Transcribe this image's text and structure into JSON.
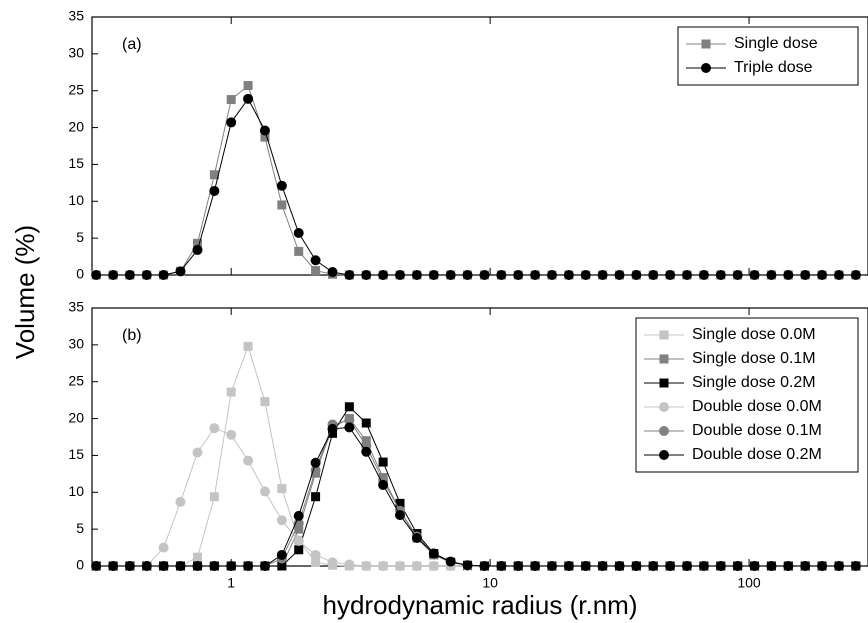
{
  "ylabel": "Volume (%)",
  "xlabel": "hydrodynamic radius (r.nm)",
  "chart_data": [
    {
      "type": "line",
      "label": "(a)",
      "log_x": true,
      "xlim": [
        0.29,
        288
      ],
      "ylim": [
        0,
        35
      ],
      "xticks": [
        1,
        10,
        100
      ],
      "yticks": [
        0,
        5,
        10,
        15,
        20,
        25,
        30,
        35
      ],
      "legend": "top-right",
      "x": [
        0.301,
        0.35,
        0.406,
        0.472,
        0.548,
        0.637,
        0.741,
        0.861,
        1.0,
        1.162,
        1.35,
        1.569,
        1.823,
        2.118,
        2.462,
        2.86,
        3.323,
        3.862,
        4.487,
        5.214,
        6.059,
        7.04,
        8.18,
        9.51,
        11.05,
        12.84,
        14.92,
        17.33,
        20.14,
        23.4,
        27.19,
        31.6,
        36.72,
        42.66,
        49.57,
        57.6,
        66.93,
        77.77,
        90.36,
        105.0,
        122.0,
        141.8,
        164.8,
        191.4,
        222.5,
        258.5
      ],
      "series": [
        {
          "name": "Single dose",
          "color": "#808080",
          "marker": "square",
          "values": [
            0,
            0,
            0,
            0,
            0,
            0.5,
            4.3,
            13.6,
            23.8,
            25.7,
            18.7,
            9.5,
            3.2,
            0.6,
            0.1,
            0,
            0,
            0,
            0,
            0,
            0,
            0,
            0,
            0,
            0,
            0,
            0,
            0,
            0,
            0,
            0,
            0,
            0,
            0,
            0,
            0,
            0,
            0,
            0,
            0,
            0,
            0,
            0,
            0,
            0,
            0
          ]
        },
        {
          "name": "Triple dose",
          "color": "#000000",
          "marker": "circle",
          "values": [
            0,
            0,
            0,
            0,
            0,
            0.5,
            3.4,
            11.4,
            20.7,
            23.9,
            19.6,
            12.1,
            5.7,
            2.0,
            0.4,
            0,
            0,
            0,
            0,
            0,
            0,
            0,
            0,
            0,
            0,
            0,
            0,
            0,
            0,
            0,
            0,
            0,
            0,
            0,
            0,
            0,
            0,
            0,
            0,
            0,
            0,
            0,
            0,
            0,
            0,
            0
          ]
        }
      ]
    },
    {
      "type": "line",
      "label": "(b)",
      "log_x": true,
      "xlim": [
        0.29,
        288
      ],
      "ylim": [
        0,
        35
      ],
      "xticks": [
        1,
        10,
        100
      ],
      "yticks": [
        0,
        5,
        10,
        15,
        20,
        25,
        30,
        35
      ],
      "legend": "top-right",
      "x": [
        0.301,
        0.35,
        0.406,
        0.472,
        0.548,
        0.637,
        0.741,
        0.861,
        1.0,
        1.162,
        1.35,
        1.569,
        1.823,
        2.118,
        2.462,
        2.86,
        3.323,
        3.862,
        4.487,
        5.214,
        6.059,
        7.04,
        8.18,
        9.51,
        11.05,
        12.84,
        14.92,
        17.33,
        20.14,
        23.4,
        27.19,
        31.6,
        36.72,
        42.66,
        49.57,
        57.6,
        66.93,
        77.77,
        90.36,
        105.0,
        122.0,
        141.8,
        164.8,
        191.4,
        222.5,
        258.5
      ],
      "series": [
        {
          "name": "Single dose 0.0M",
          "color": "#c4c4c4",
          "marker": "square",
          "values": [
            0,
            0,
            0,
            0,
            0,
            0,
            1.2,
            9.4,
            23.6,
            29.8,
            22.3,
            10.5,
            3.5,
            0.5,
            0.1,
            0,
            0,
            0,
            0,
            0,
            0,
            0,
            0,
            0,
            0,
            0,
            0,
            0,
            0,
            0,
            0,
            0,
            0,
            0,
            0,
            0,
            0,
            0,
            0,
            0,
            0,
            0,
            0,
            0,
            0,
            0
          ]
        },
        {
          "name": "Single dose 0.1M",
          "color": "#808080",
          "marker": "square",
          "values": [
            0,
            0,
            0,
            0,
            0,
            0,
            0,
            0,
            0,
            0,
            0,
            0,
            5.0,
            12.6,
            18.8,
            20.0,
            17.0,
            12.0,
            7.5,
            3.8,
            1.5,
            0.5,
            0.1,
            0,
            0,
            0,
            0,
            0,
            0,
            0,
            0,
            0,
            0,
            0,
            0,
            0,
            0,
            0,
            0,
            0,
            0,
            0,
            0,
            0,
            0,
            0
          ]
        },
        {
          "name": "Single dose 0.2M",
          "color": "#000000",
          "marker": "square",
          "values": [
            0,
            0,
            0,
            0,
            0,
            0,
            0,
            0,
            0,
            0,
            0,
            0,
            2.2,
            9.4,
            18.0,
            21.6,
            19.4,
            14.1,
            8.5,
            4.4,
            1.7,
            0.5,
            0.1,
            0,
            0,
            0,
            0,
            0,
            0,
            0,
            0,
            0,
            0,
            0,
            0,
            0,
            0,
            0,
            0,
            0,
            0,
            0,
            0,
            0,
            0,
            0
          ]
        },
        {
          "name": "Double dose 0.0M",
          "color": "#c4c4c4",
          "marker": "circle",
          "values": [
            0,
            0,
            0,
            0,
            2.5,
            8.7,
            15.4,
            18.7,
            17.8,
            14.3,
            10.1,
            6.2,
            3.4,
            1.5,
            0.5,
            0.2,
            0,
            0,
            0,
            0,
            0,
            0,
            0,
            0,
            0,
            0,
            0,
            0,
            0,
            0,
            0,
            0,
            0,
            0,
            0,
            0,
            0,
            0,
            0,
            0,
            0,
            0,
            0,
            0,
            0,
            0
          ]
        },
        {
          "name": "Double dose 0.1M",
          "color": "#808080",
          "marker": "circle",
          "values": [
            0,
            0,
            0,
            0,
            0,
            0,
            0,
            0,
            0,
            0,
            0,
            1.0,
            5.8,
            13.0,
            19.2,
            19.8,
            16.3,
            11.6,
            7.5,
            4.0,
            1.7,
            0.6,
            0.1,
            0,
            0,
            0,
            0,
            0,
            0,
            0,
            0,
            0,
            0,
            0,
            0,
            0,
            0,
            0,
            0,
            0,
            0,
            0,
            0,
            0,
            0,
            0
          ]
        },
        {
          "name": "Double dose 0.2M",
          "color": "#000000",
          "marker": "circle",
          "values": [
            0,
            0,
            0,
            0,
            0,
            0,
            0,
            0,
            0,
            0,
            0,
            1.5,
            6.8,
            14.0,
            18.6,
            18.8,
            15.5,
            11.0,
            6.9,
            3.8,
            1.7,
            0.6,
            0.1,
            0,
            0,
            0,
            0,
            0,
            0,
            0,
            0,
            0,
            0,
            0,
            0,
            0,
            0,
            0,
            0,
            0,
            0,
            0,
            0,
            0,
            0,
            0
          ]
        }
      ]
    }
  ]
}
